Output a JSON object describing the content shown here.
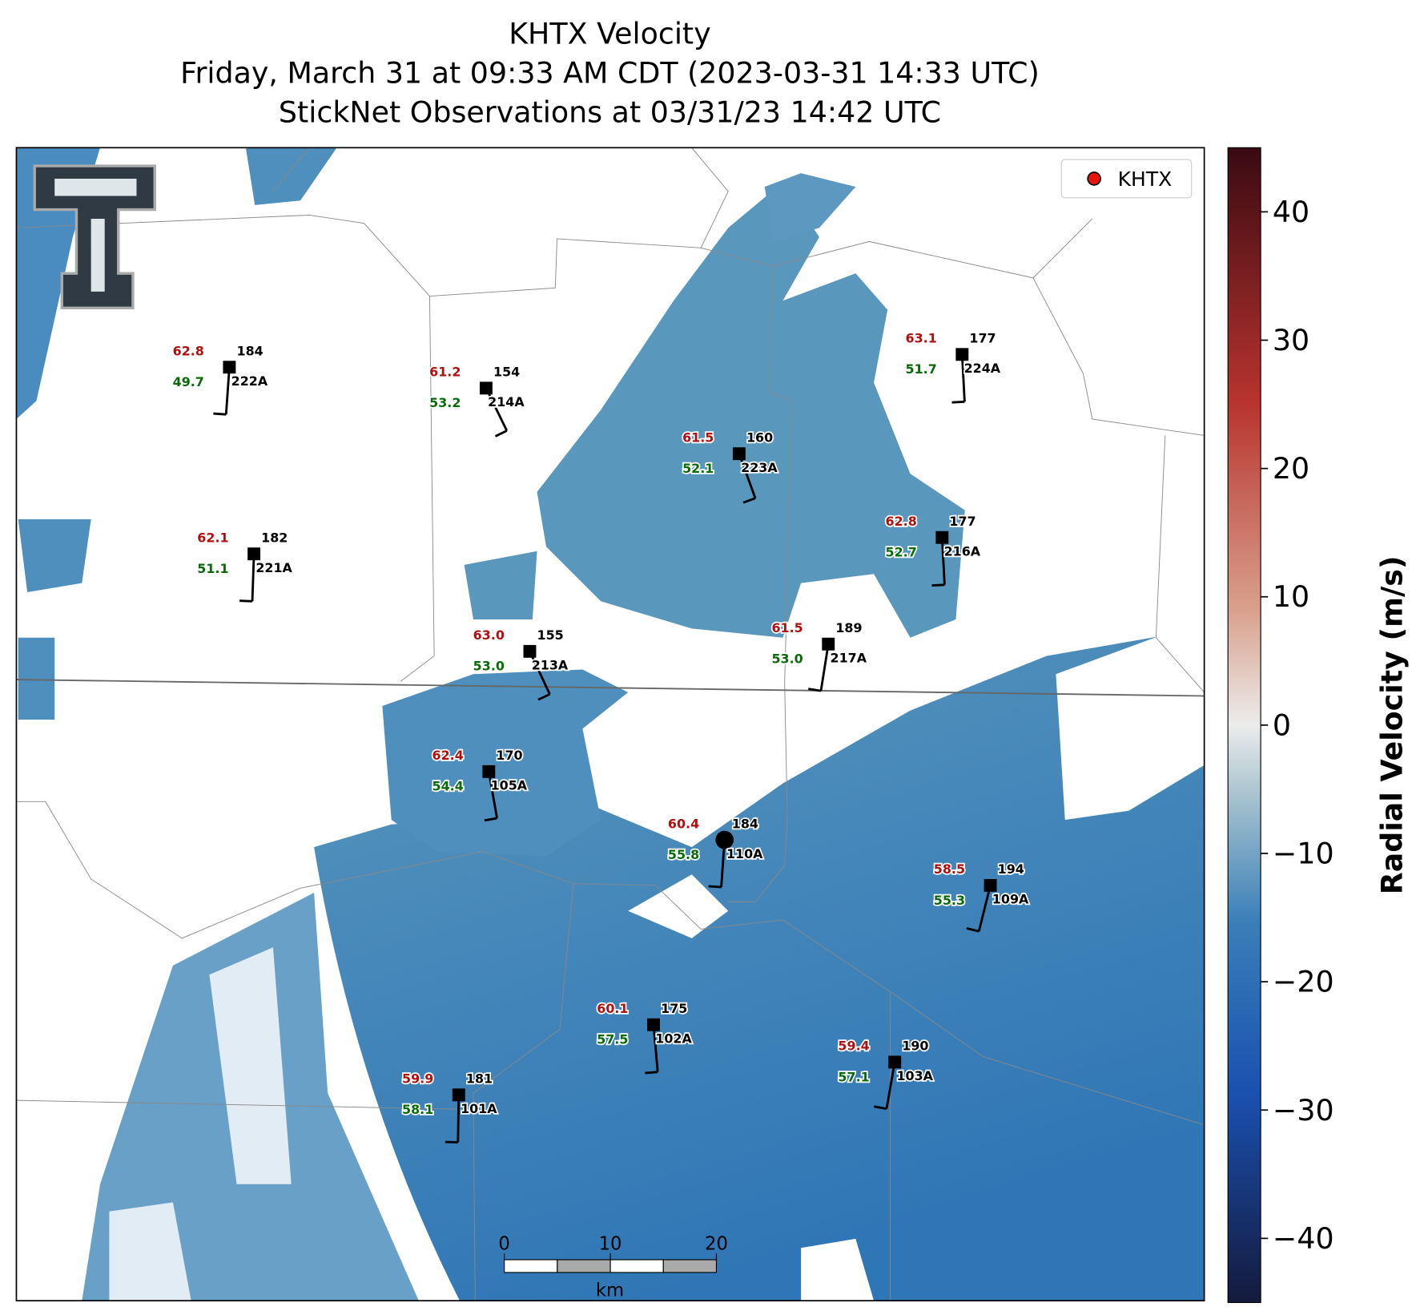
{
  "title": {
    "lines": [
      "KHTX Velocity",
      "Friday, March 31 at 09:33 AM CDT (2023-03-31 14:33 UTC)",
      "StickNet Observations at 03/31/23 14:42 UTC"
    ]
  },
  "legend": {
    "label": "KHTX"
  },
  "stations": [
    {
      "id": "222A",
      "red": "62.8",
      "dir": 184,
      "green": "49.7"
    },
    {
      "id": "214A",
      "red": "61.2",
      "dir": 154,
      "green": "53.2"
    },
    {
      "id": "223A",
      "red": "61.5",
      "dir": 160,
      "green": "52.1"
    },
    {
      "id": "224A",
      "red": "63.1",
      "dir": 177,
      "green": "51.7"
    },
    {
      "id": "221A",
      "red": "62.1",
      "dir": 182,
      "green": "51.1"
    },
    {
      "id": "216A",
      "red": "62.8",
      "dir": 177,
      "green": "52.7"
    },
    {
      "id": "213A",
      "red": "63.0",
      "dir": 155,
      "green": "53.0"
    },
    {
      "id": "217A",
      "red": "61.5",
      "dir": 189,
      "green": "53.0"
    },
    {
      "id": "105A",
      "red": "62.4",
      "dir": 170,
      "green": "54.4"
    },
    {
      "id": "110A",
      "red": "60.4",
      "dir": 184,
      "green": "55.8"
    },
    {
      "id": "109A",
      "red": "58.5",
      "dir": 194,
      "green": "55.3"
    },
    {
      "id": "102A",
      "red": "60.1",
      "dir": 175,
      "green": "57.5"
    },
    {
      "id": "103A",
      "red": "59.4",
      "dir": 190,
      "green": "57.1"
    },
    {
      "id": "101A",
      "red": "59.9",
      "dir": 181,
      "green": "58.1"
    }
  ],
  "colorbar": {
    "label": "Radial Velocity (m/s)",
    "lim": [
      -45,
      45
    ],
    "ticks": [
      {
        "value": -40,
        "label": "−40"
      },
      {
        "value": -30,
        "label": "−30"
      },
      {
        "value": -20,
        "label": "−20"
      },
      {
        "value": -10,
        "label": "−10"
      },
      0,
      10,
      20,
      30,
      40
    ]
  },
  "scale_bar": {
    "ticks": [
      0,
      10,
      20
    ],
    "unit": "km"
  }
}
